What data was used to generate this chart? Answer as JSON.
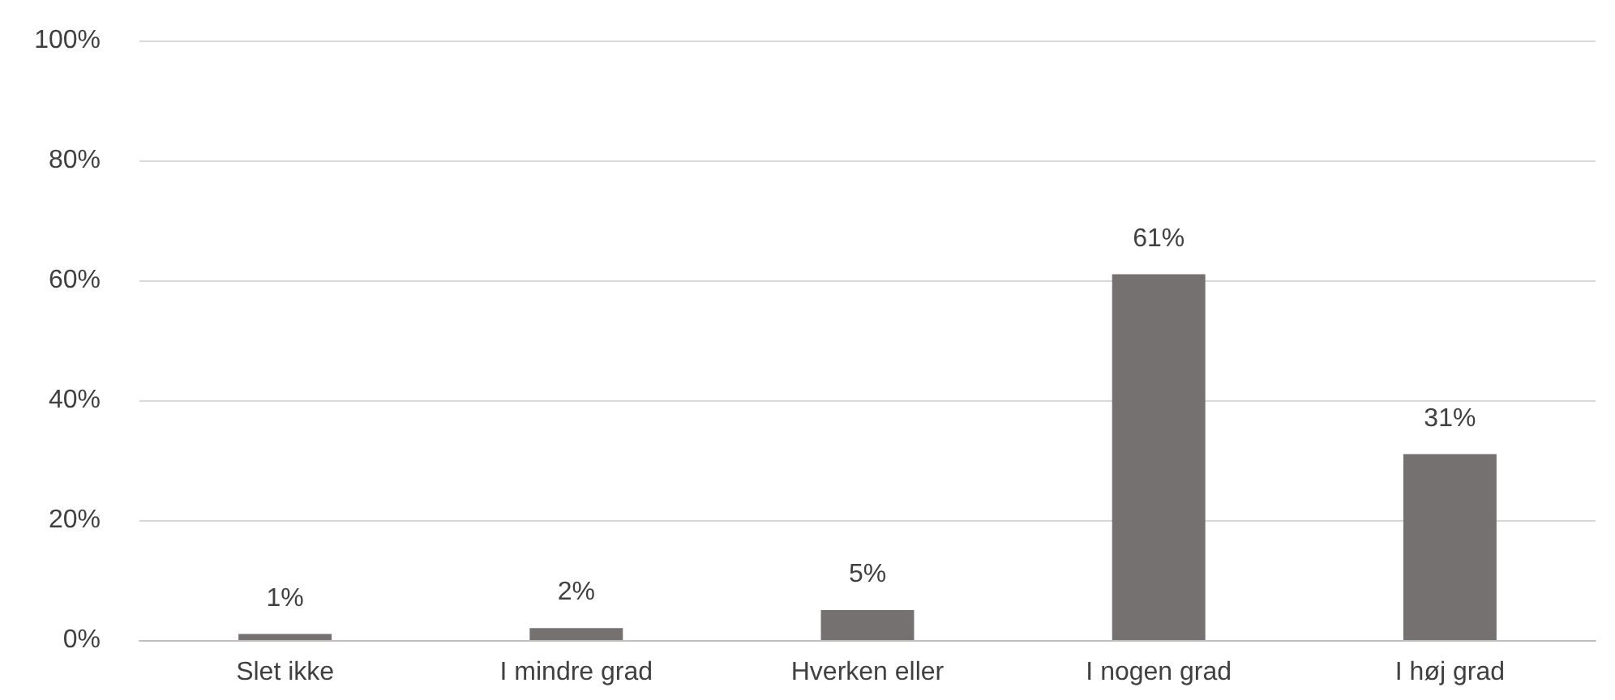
{
  "chart_data": {
    "type": "bar",
    "categories": [
      "Slet ikke",
      "I mindre grad",
      "Hverken eller",
      "I nogen grad",
      "I høj grad"
    ],
    "values": [
      1,
      2,
      5,
      61,
      31
    ],
    "color": "#767171",
    "value_labels": [
      "1%",
      "2%",
      "5%",
      "61%",
      "31%"
    ],
    "ylim": [
      0,
      100
    ],
    "yticks": [
      {
        "value": 0,
        "label": "0%"
      },
      {
        "value": 20,
        "label": "20%"
      },
      {
        "value": 40,
        "label": "40%"
      },
      {
        "value": 60,
        "label": "60%"
      },
      {
        "value": 80,
        "label": "80%"
      },
      {
        "value": 100,
        "label": "100%"
      }
    ],
    "grid": "y"
  }
}
